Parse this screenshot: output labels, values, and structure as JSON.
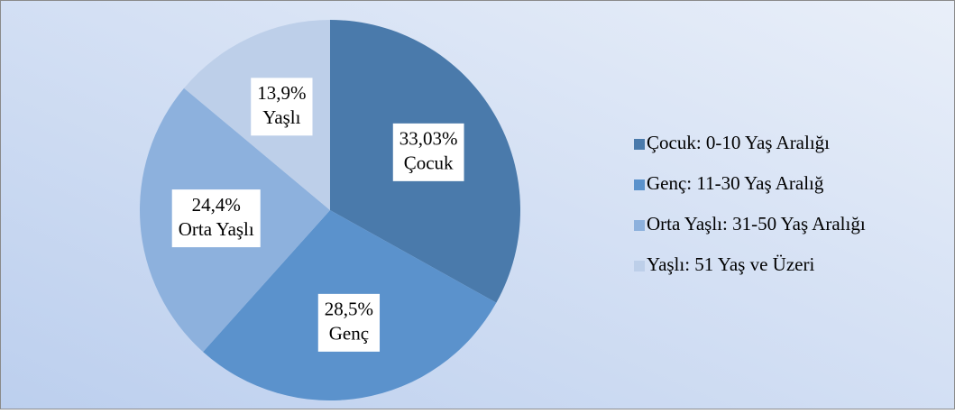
{
  "chart_data": {
    "type": "pie",
    "categories": [
      "Çocuk: 0-10 Yaş Aralığı",
      "Genç: 11-30 Yaş Aralığ",
      "Orta Yaşlı: 31-50 Yaş Aralığı",
      "Yaşlı: 51 Yaş ve Üzeri"
    ],
    "label_names": [
      "Çocuk",
      "Genç",
      "Orta Yaşlı",
      "Yaşlı"
    ],
    "values": [
      33.03,
      28.5,
      24.4,
      13.9
    ],
    "value_labels": [
      "33,03%",
      "28,5%",
      "24,4%",
      "13,9%"
    ],
    "colors": [
      "#4a7aab",
      "#5b92cc",
      "#8db1dd",
      "#bdcfe9"
    ],
    "legend": "right"
  }
}
